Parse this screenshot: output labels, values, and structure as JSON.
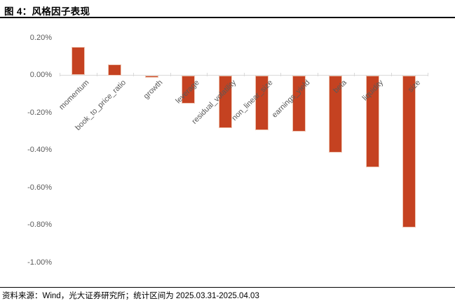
{
  "header": {
    "title": "图 4：风格因子表现"
  },
  "footer": {
    "source": "资料来源：Wind，光大证券研究所；统计区间为 2025.03.31-2025.04.03"
  },
  "colors": {
    "bar_fill": "#C54221",
    "bar_border": "#EFC7B4",
    "axis_line": "#D9D9D9",
    "tick_text": "#595959",
    "title_text": "#000000"
  },
  "chart_data": {
    "type": "bar",
    "title": "风格因子表现",
    "categories": [
      "momentum",
      "book_to_price_ratio",
      "growth",
      "leverage",
      "residual_volatility",
      "non_linear_size",
      "earnings_yield",
      "beta",
      "liquidity",
      "size"
    ],
    "values": [
      0.15,
      0.06,
      -0.01,
      -0.15,
      -0.28,
      -0.29,
      -0.3,
      -0.41,
      -0.49,
      -0.81
    ],
    "value_unit": "%",
    "xlabel": "",
    "ylabel": "",
    "ylim": [
      -1.0,
      0.2
    ],
    "ytick_step": 0.2,
    "ytick_labels": [
      "0.20%",
      "0.00%",
      "-0.20%",
      "-0.40%",
      "-0.60%",
      "-0.80%",
      "-1.00%"
    ],
    "ytick_values": [
      0.2,
      0.0,
      -0.2,
      -0.4,
      -0.6,
      -0.8,
      -1.0
    ],
    "grid": false,
    "legend": "none",
    "bar_color": "#C54221",
    "category_label_rotation_deg": 45
  }
}
